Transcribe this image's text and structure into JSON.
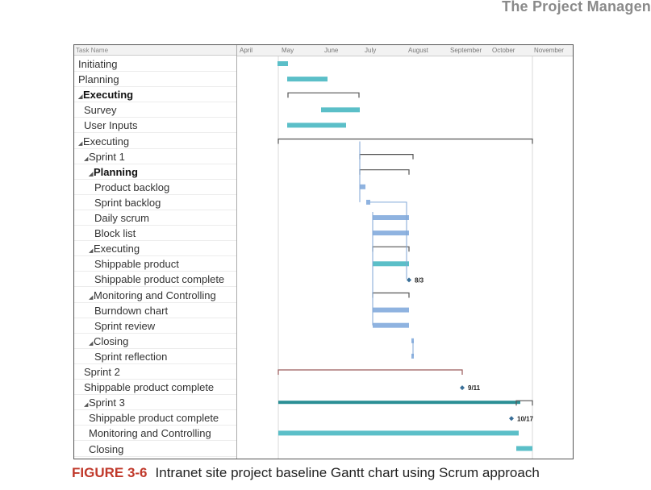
{
  "header": {
    "text": "The Project Managen"
  },
  "gantt": {
    "column_header": "Task Name",
    "months": [
      "April",
      "May",
      "June",
      "July",
      "August",
      "September",
      "October",
      "November"
    ],
    "tasks": [
      {
        "name": "Initiating",
        "indent": 0,
        "bold": false,
        "summary": false
      },
      {
        "name": "Planning",
        "indent": 0,
        "bold": false,
        "summary": false
      },
      {
        "name": "Executing",
        "indent": 0,
        "bold": true,
        "summary": true
      },
      {
        "name": "Survey",
        "indent": 1,
        "bold": false,
        "summary": false
      },
      {
        "name": "User Inputs",
        "indent": 1,
        "bold": false,
        "summary": false
      },
      {
        "name": "Executing",
        "indent": 0,
        "bold": false,
        "summary": true
      },
      {
        "name": "Sprint 1",
        "indent": 1,
        "bold": false,
        "summary": true
      },
      {
        "name": "Planning",
        "indent": 2,
        "bold": true,
        "summary": true
      },
      {
        "name": "Product backlog",
        "indent": 3,
        "bold": false,
        "summary": false
      },
      {
        "name": "Sprint backlog",
        "indent": 3,
        "bold": false,
        "summary": false
      },
      {
        "name": "Daily scrum",
        "indent": 3,
        "bold": false,
        "summary": false
      },
      {
        "name": "Block list",
        "indent": 3,
        "bold": false,
        "summary": false
      },
      {
        "name": "Executing",
        "indent": 2,
        "bold": false,
        "summary": true
      },
      {
        "name": "Shippable product",
        "indent": 3,
        "bold": false,
        "summary": false
      },
      {
        "name": "Shippable product complete",
        "indent": 3,
        "bold": false,
        "summary": false
      },
      {
        "name": "Monitoring and Controlling",
        "indent": 2,
        "bold": false,
        "summary": true
      },
      {
        "name": "Burndown chart",
        "indent": 3,
        "bold": false,
        "summary": false
      },
      {
        "name": "Sprint review",
        "indent": 3,
        "bold": false,
        "summary": false
      },
      {
        "name": "Closing",
        "indent": 2,
        "bold": false,
        "summary": true
      },
      {
        "name": "Sprint reflection",
        "indent": 3,
        "bold": false,
        "summary": false
      },
      {
        "name": "Sprint 2",
        "indent": 1,
        "bold": false,
        "summary": false
      },
      {
        "name": "Shippable product complete",
        "indent": 1,
        "bold": false,
        "summary": false
      },
      {
        "name": "Sprint 3",
        "indent": 1,
        "bold": false,
        "summary": true
      },
      {
        "name": "Shippable product complete",
        "indent": 2,
        "bold": false,
        "summary": false
      },
      {
        "name": "Monitoring and Controlling",
        "indent": 2,
        "bold": false,
        "summary": false
      },
      {
        "name": "Closing",
        "indent": 2,
        "bold": false,
        "summary": false
      }
    ],
    "milestones": [
      {
        "task_index": 14,
        "label": "8/3"
      },
      {
        "task_index": 21,
        "label": "9/11"
      },
      {
        "task_index": 23,
        "label": "10/17"
      }
    ],
    "colors": {
      "bar_teal": "#5bbfc8",
      "bar_blue": "#8fb3e0",
      "summary_bracket": "#555555",
      "sprint2_bracket": "#9a5b5b",
      "sprint3_bar": "#2b8f95",
      "link_line": "#7fa6d6",
      "milestone": "#3a6f98"
    }
  },
  "caption": {
    "label": "FIGURE 3-6",
    "text": "Intranet site project baseline Gantt chart using Scrum approach"
  }
}
